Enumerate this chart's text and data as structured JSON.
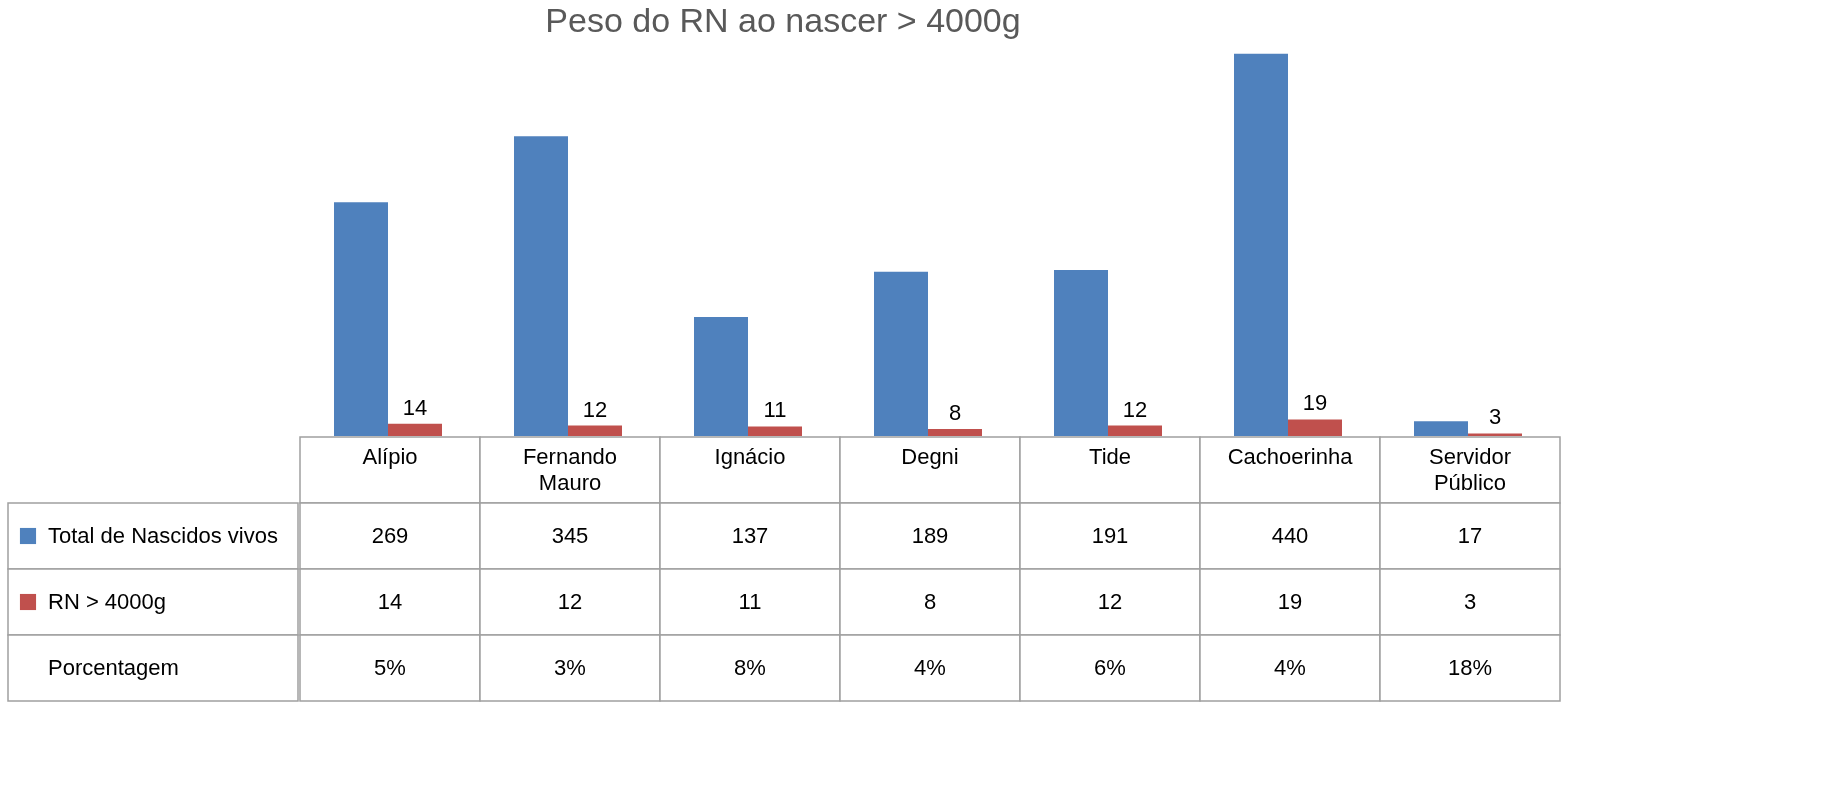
{
  "chart_data": {
    "type": "bar",
    "title": "Peso do RN ao nascer > 4000g",
    "categories": [
      "Alípio",
      "Fernando Mauro",
      "Ignácio",
      "Degni",
      "Tide",
      "Cachoerinha",
      "Servidor Público"
    ],
    "series": [
      {
        "name": "Total de Nascidos vivos",
        "color": "#4f81bd",
        "values": [
          269,
          345,
          137,
          189,
          191,
          440,
          17
        ]
      },
      {
        "name": "RN > 4000g",
        "color": "#c0504d",
        "values": [
          14,
          12,
          11,
          8,
          12,
          19,
          3
        ]
      }
    ],
    "data_labels": true,
    "legend": "bottom left",
    "annotations": [
      "Porcentagem",
      "5%",
      "3%",
      "8%",
      "4%",
      "6%",
      "4%",
      "18%",
      {
        "text": "14",
        "x": "Alípio",
        "y": 14
      },
      {
        "text": "12",
        "x": "Fernando Mauro",
        "y": 12
      },
      {
        "text": "11",
        "x": "Ignácio",
        "y": 11
      },
      {
        "text": "8",
        "x": "Degni",
        "y": 8
      },
      {
        "text": "12",
        "x": "Tide",
        "y": 12
      },
      {
        "text": "19",
        "x": "Cachoerinha",
        "y": 19
      },
      {
        "text": "3",
        "x": "Servidor Público",
        "y": 3
      }
    ]
  }
}
